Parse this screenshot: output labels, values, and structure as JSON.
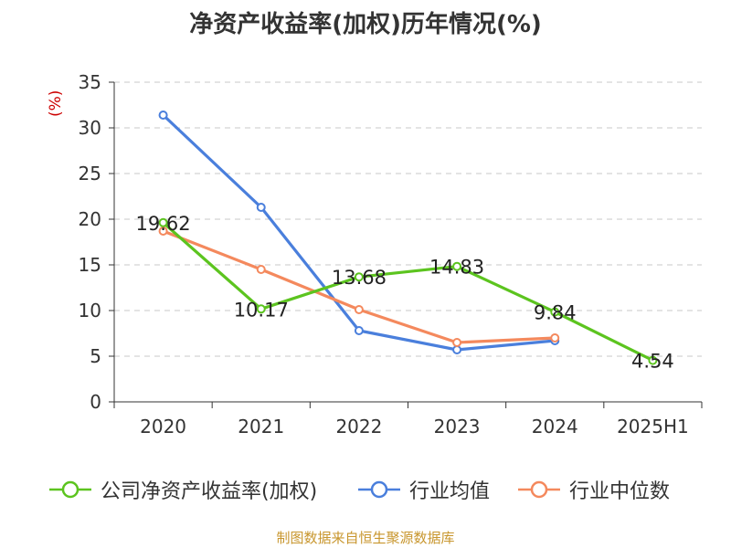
{
  "chart_data": {
    "type": "line",
    "title": "净资产收益率(加权)历年情况(%)",
    "ylabel": "(%)",
    "categories": [
      "2020",
      "2021",
      "2022",
      "2023",
      "2024",
      "2025H1"
    ],
    "ylim": [
      0,
      35
    ],
    "yticks": [
      0,
      5,
      10,
      15,
      20,
      25,
      30,
      35
    ],
    "grid": true,
    "legend_position": "bottom",
    "series": [
      {
        "name": "公司净资产收益率(加权)",
        "color": "#5cc41f",
        "values": [
          19.62,
          10.17,
          13.68,
          14.83,
          9.84,
          4.54
        ],
        "labels": [
          "19.62",
          "10.17",
          "13.68",
          "14.83",
          "9.84",
          "4.54"
        ]
      },
      {
        "name": "行业均值",
        "color": "#4a7fdc",
        "values": [
          31.4,
          21.3,
          7.8,
          5.7,
          6.7,
          null
        ]
      },
      {
        "name": "行业中位数",
        "color": "#f4895d",
        "values": [
          18.7,
          14.5,
          10.1,
          6.5,
          7.0,
          null
        ]
      }
    ]
  },
  "source": "制图数据来自恒生聚源数据库"
}
